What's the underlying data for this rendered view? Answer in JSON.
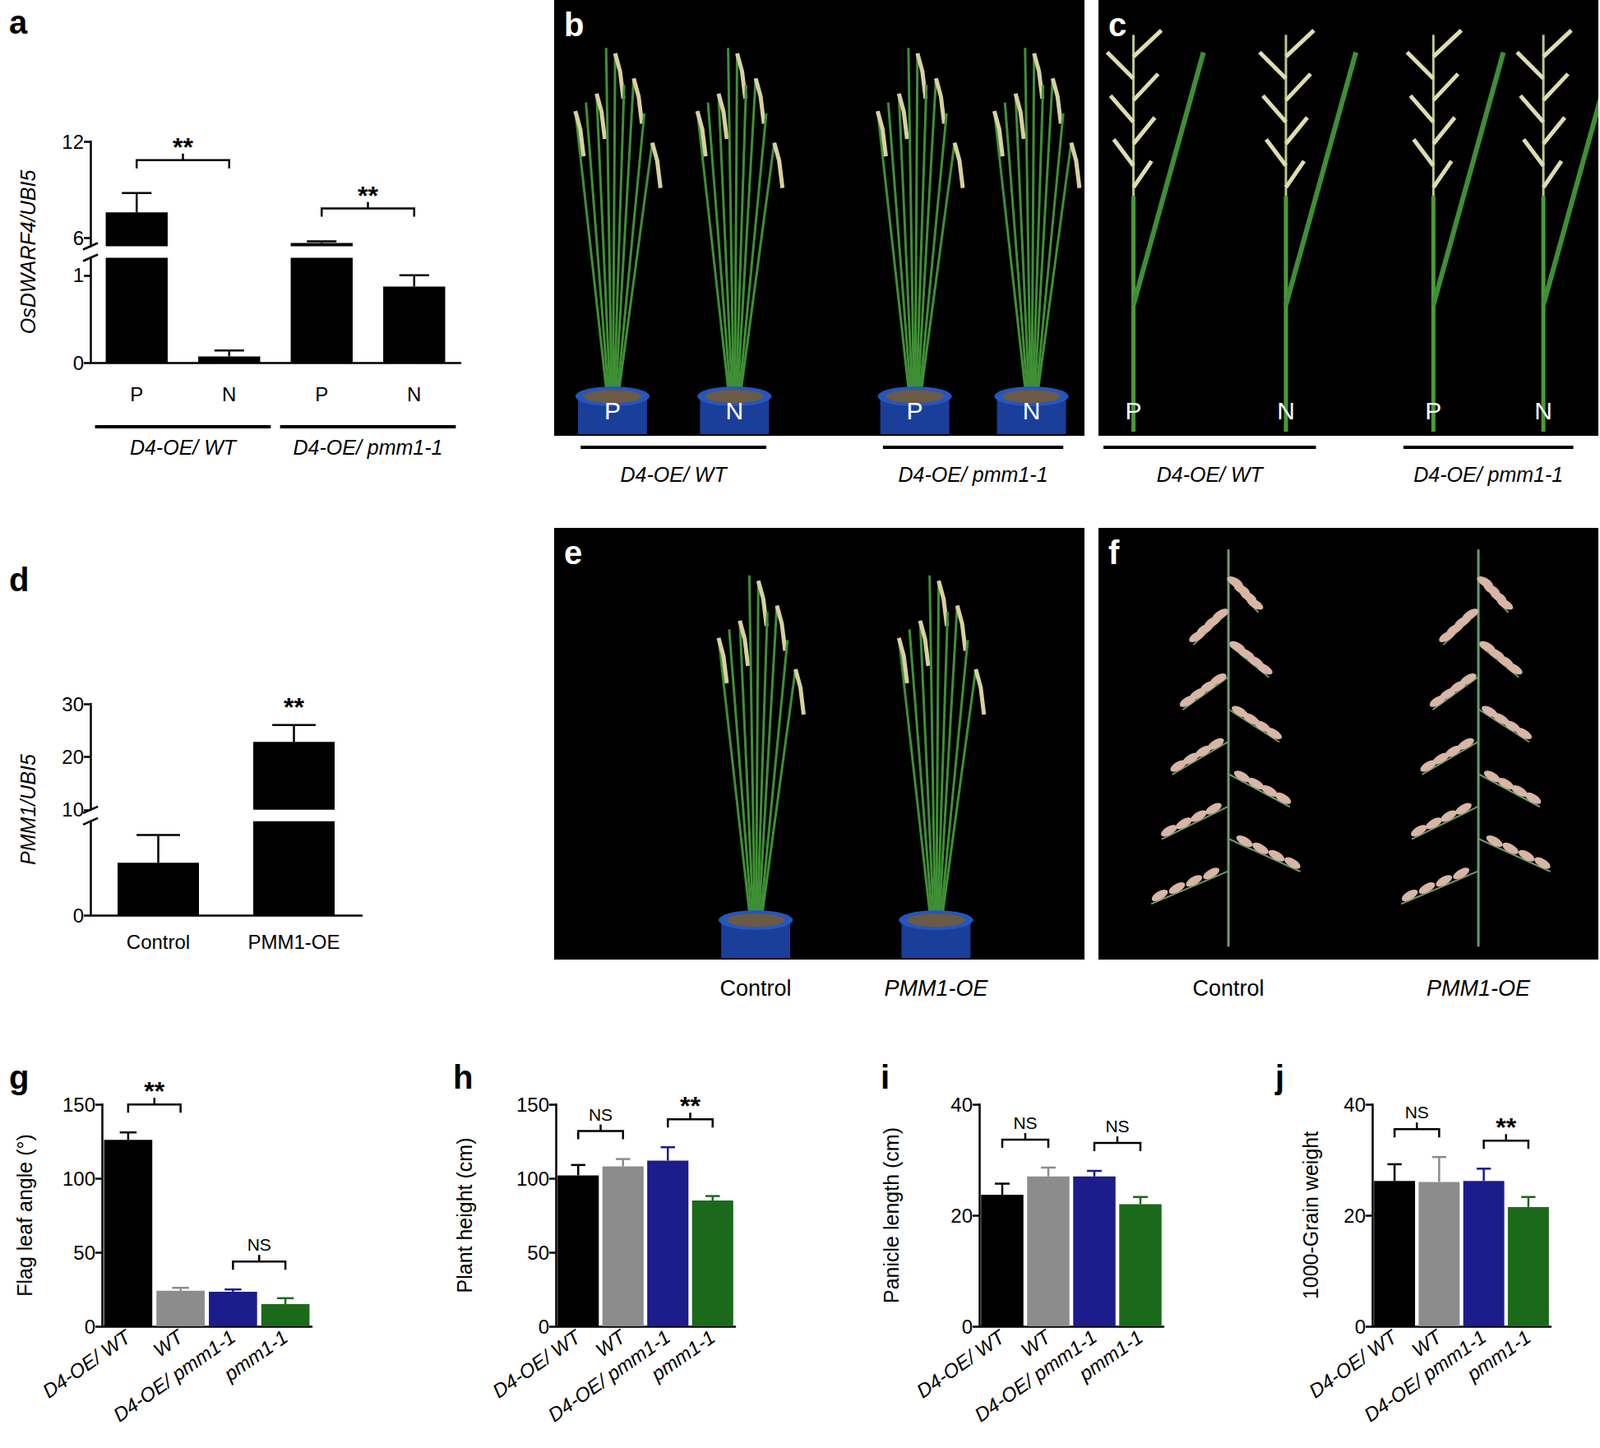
{
  "chart_data": [
    {
      "type": "bar",
      "title": "a",
      "ylabel": "OsDWARF4/UBI5",
      "categories": [
        "P",
        "N",
        "P",
        "N"
      ],
      "values": [
        7.6,
        0.07,
        5.7,
        0.87
      ],
      "errors": [
        1.2,
        0.07,
        0.1,
        0.13
      ],
      "color": "#000000",
      "ylim": [
        0,
        12
      ],
      "ybreak": [
        1.2,
        5.5
      ],
      "yticks": [
        0,
        1,
        6,
        12
      ],
      "groups": [
        {
          "label": "D4-OE/ WT",
          "between": [
            0,
            1
          ]
        },
        {
          "label": "D4-OE/ pmm1-1",
          "between": [
            2,
            3
          ]
        }
      ],
      "annotations": [
        {
          "text": "**",
          "between": [
            0,
            1
          ]
        },
        {
          "text": "**",
          "between": [
            2,
            3
          ]
        }
      ]
    },
    {
      "type": "bar",
      "title": "d",
      "ylabel": "PMM1/UBI5",
      "categories": [
        "Control",
        "PMM1-OE"
      ],
      "values": [
        5.3,
        22.8
      ],
      "errors": [
        2.8,
        3.2
      ],
      "color": "#000000",
      "ylim": [
        0,
        30
      ],
      "ybreak": [
        9.5,
        10
      ],
      "yticks": [
        0,
        10,
        20,
        30
      ],
      "annotations": [
        {
          "text": "**",
          "between": [
            1,
            1
          ]
        }
      ]
    },
    {
      "type": "bar",
      "title": "g",
      "ylabel": "Flag leaf angle (°)",
      "categories": [
        "D4-OE/ WT",
        "WT",
        "D4-OE/ pmm1-1",
        "pmm1-1"
      ],
      "values": [
        126,
        24,
        23.4,
        15
      ],
      "errors": [
        5,
        2,
        1.5,
        4
      ],
      "colors": [
        "#000000",
        "#8c8c8c",
        "#1c1c8c",
        "#1b6a1b"
      ],
      "ylim": [
        0,
        150
      ],
      "yticks": [
        0,
        50,
        100,
        150
      ],
      "annotations": [
        {
          "text": "**",
          "between": [
            0,
            1
          ]
        },
        {
          "text": "NS",
          "between": [
            2,
            3
          ]
        }
      ]
    },
    {
      "type": "bar",
      "title": "h",
      "ylabel": "Plant height (cm)",
      "categories": [
        "D4-OE/ WT",
        "WT",
        "D4-OE/ pmm1-1",
        "pmm1-1"
      ],
      "values": [
        102,
        108,
        112,
        85
      ],
      "errors": [
        7,
        5,
        9,
        3
      ],
      "colors": [
        "#000000",
        "#8c8c8c",
        "#1c1c8c",
        "#1b6a1b"
      ],
      "ylim": [
        0,
        150
      ],
      "yticks": [
        0,
        50,
        100,
        150
      ],
      "annotations": [
        {
          "text": "NS",
          "between": [
            0,
            1
          ]
        },
        {
          "text": "**",
          "between": [
            2,
            3
          ]
        }
      ]
    },
    {
      "type": "bar",
      "title": "i",
      "ylabel": "Panicle length (cm)",
      "categories": [
        "D4-OE/ WT",
        "WT",
        "D4-OE/ pmm1-1",
        "pmm1-1"
      ],
      "values": [
        23.7,
        27,
        27,
        22
      ],
      "errors": [
        2,
        1.6,
        1,
        1.3
      ],
      "colors": [
        "#000000",
        "#8c8c8c",
        "#1c1c8c",
        "#1b6a1b"
      ],
      "ylim": [
        0,
        40
      ],
      "yticks": [
        0,
        20,
        40
      ],
      "annotations": [
        {
          "text": "NS",
          "between": [
            0,
            1
          ]
        },
        {
          "text": "NS",
          "between": [
            2,
            3
          ]
        }
      ]
    },
    {
      "type": "bar",
      "title": "j",
      "ylabel": "1000-Grain weight",
      "categories": [
        "D4-OE/ WT",
        "WT",
        "D4-OE/ pmm1-1",
        "pmm1-1"
      ],
      "values": [
        26.2,
        26,
        26.2,
        21.5
      ],
      "errors": [
        3,
        4.5,
        2.2,
        1.8
      ],
      "colors": [
        "#000000",
        "#8c8c8c",
        "#1c1c8c",
        "#1b6a1b"
      ],
      "ylim": [
        0,
        40
      ],
      "yticks": [
        0,
        20,
        40
      ],
      "annotations": [
        {
          "text": "NS",
          "between": [
            0,
            1
          ]
        },
        {
          "text": "**",
          "between": [
            2,
            3
          ]
        }
      ]
    }
  ],
  "photo_panels": [
    {
      "title": "b",
      "labels": [
        "P",
        "N",
        "P",
        "N"
      ],
      "groups": [
        {
          "label": "D4-OE/ WT",
          "between": [
            0,
            1
          ]
        },
        {
          "label": "D4-OE/ pmm1-1",
          "between": [
            2,
            3
          ]
        }
      ]
    },
    {
      "title": "c",
      "labels": [
        "P",
        "N",
        "P",
        "N"
      ],
      "groups": [
        {
          "label": "D4-OE/ WT",
          "between": [
            0,
            1
          ]
        },
        {
          "label": "D4-OE/ pmm1-1",
          "between": [
            2,
            3
          ]
        }
      ]
    },
    {
      "title": "e",
      "labels": [
        "Control",
        "PMM1-OE"
      ]
    },
    {
      "title": "f",
      "labels": [
        "Control",
        "PMM1-OE"
      ]
    }
  ]
}
